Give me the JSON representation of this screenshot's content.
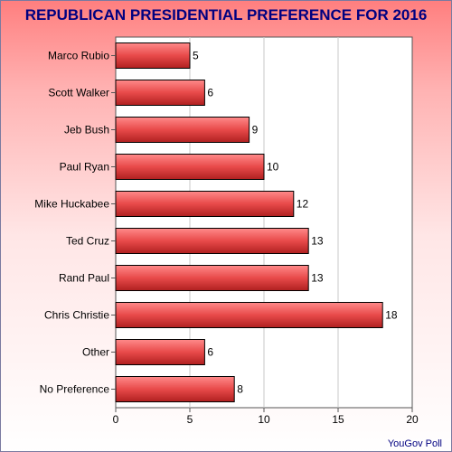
{
  "chart_data": {
    "type": "bar",
    "orientation": "horizontal",
    "title": "REPUBLICAN PRESIDENTIAL PREFERENCE FOR 2016",
    "categories": [
      "Marco Rubio",
      "Scott Walker",
      "Jeb Bush",
      "Paul Ryan",
      "Mike Huckabee",
      "Ted Cruz",
      "Rand Paul",
      "Chris Christie",
      "Other",
      "No Preference"
    ],
    "values": [
      5,
      6,
      9,
      10,
      12,
      13,
      13,
      18,
      6,
      8
    ],
    "xlim": [
      0,
      20
    ],
    "xticks": [
      0,
      5,
      10,
      15,
      20
    ],
    "grid": true,
    "bar_color": "#e84a4a",
    "title_color": "#000080"
  },
  "source": "YouGov Poll"
}
